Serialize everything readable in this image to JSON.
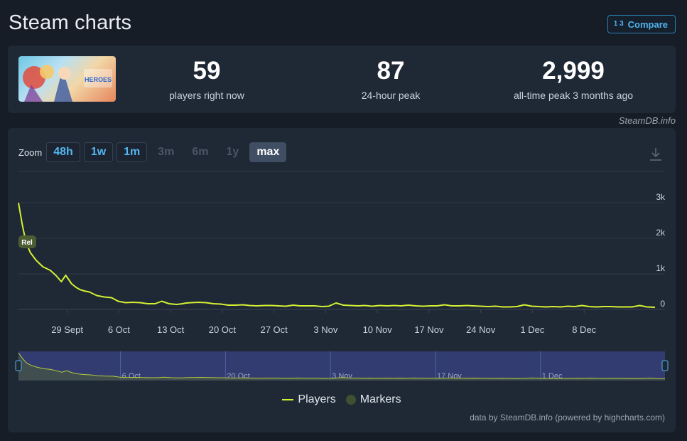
{
  "header": {
    "title": "Steam charts",
    "compare_label": "Compare",
    "compare_icon": "fraction-icon"
  },
  "stats": [
    {
      "value": "59",
      "label": "players right now"
    },
    {
      "value": "87",
      "label": "24-hour peak"
    },
    {
      "value": "2,999",
      "label": "all-time peak 3 months ago"
    }
  ],
  "game_thumbnail_text": "HEROES",
  "credit_top": "SteamDB.info",
  "zoom": {
    "label": "Zoom",
    "buttons": [
      {
        "label": "48h",
        "state": "active"
      },
      {
        "label": "1w",
        "state": "active"
      },
      {
        "label": "1m",
        "state": "active"
      },
      {
        "label": "3m",
        "state": "disabled"
      },
      {
        "label": "6m",
        "state": "disabled"
      },
      {
        "label": "1y",
        "state": "disabled"
      },
      {
        "label": "max",
        "state": "selected"
      }
    ]
  },
  "chart_data": {
    "type": "line",
    "title": "",
    "xlabel": "",
    "ylabel": "",
    "ylim": [
      0,
      3000
    ],
    "y_ticks": [
      "0",
      "1k",
      "2k",
      "3k"
    ],
    "y_tick_values": [
      0,
      1000,
      2000,
      3000
    ],
    "x_ticks": [
      "29 Sept",
      "6 Oct",
      "13 Oct",
      "20 Oct",
      "27 Oct",
      "3 Nov",
      "10 Nov",
      "17 Nov",
      "24 Nov",
      "1 Dec",
      "8 Dec"
    ],
    "x_range_days": [
      -6.6,
      79.6
    ],
    "x_tick_days": [
      0,
      7,
      14,
      21,
      28,
      35,
      42,
      49,
      56,
      63,
      70
    ],
    "grid": true,
    "legend_position": "bottom-center",
    "marker_label": "Rel",
    "series": [
      {
        "name": "Players",
        "color": "#d4f033",
        "x_days": [
          -6.6,
          -6.1,
          -5.6,
          -5.0,
          -4.2,
          -3.3,
          -2.3,
          -1.5,
          -0.8,
          -0.2,
          0.6,
          1.2,
          1.7,
          2.3,
          3.0,
          4.0,
          5.0,
          6.0,
          6.9,
          7.9,
          8.9,
          9.9,
          10.9,
          11.9,
          12.8,
          13.8,
          14.8,
          15.6,
          16.1,
          16.8,
          17.8,
          18.8,
          19.8,
          20.8,
          21.8,
          22.8,
          23.8,
          24.7,
          25.7,
          26.7,
          27.7,
          28.6,
          29.6,
          30.6,
          31.5,
          32.5,
          33.5,
          34.5,
          35.4,
          36.4,
          37.4,
          38.4,
          39.4,
          40.3,
          41.3,
          42.3,
          43.3,
          44.3,
          45.2,
          46.2,
          47.2,
          48.2,
          49.2,
          50.1,
          51.1,
          52.1,
          53.1,
          54.1,
          55.0,
          56.0,
          57.0,
          58.0,
          59.0,
          59.9,
          60.9,
          61.9,
          62.9,
          63.9,
          64.8,
          65.8,
          66.8,
          67.8,
          68.7,
          69.7,
          70.7,
          71.7,
          72.6,
          73.6,
          74.6,
          75.6,
          76.5,
          77.5,
          78.5,
          79.6
        ],
        "values": [
          2999,
          2400,
          1900,
          1600,
          1380,
          1200,
          1100,
          950,
          780,
          960,
          720,
          620,
          560,
          520,
          490,
          390,
          350,
          330,
          230,
          190,
          200,
          190,
          160,
          160,
          230,
          160,
          140,
          160,
          180,
          190,
          200,
          190,
          160,
          150,
          120,
          120,
          130,
          110,
          100,
          110,
          110,
          100,
          90,
          120,
          100,
          100,
          100,
          80,
          90,
          180,
          120,
          110,
          100,
          110,
          90,
          110,
          100,
          110,
          100,
          120,
          100,
          90,
          100,
          100,
          130,
          100,
          100,
          110,
          100,
          90,
          80,
          90,
          70,
          70,
          80,
          130,
          90,
          80,
          70,
          80,
          70,
          90,
          80,
          110,
          80,
          70,
          80,
          80,
          70,
          70,
          70,
          110,
          70,
          60
        ]
      }
    ]
  },
  "navigator": {
    "labels": [
      "6 Oct",
      "20 Oct",
      "3 Nov",
      "17 Nov",
      "1 Dec"
    ]
  },
  "legend": {
    "players_label": "Players",
    "markers_label": "Markers"
  },
  "chart_credit": "data by SteamDB.info (powered by highcharts.com)",
  "colors": {
    "background": "#171d26",
    "card": "#1f2835",
    "accent": "#54b6f0",
    "line": "#d4f033",
    "navigator": "#323c70"
  }
}
